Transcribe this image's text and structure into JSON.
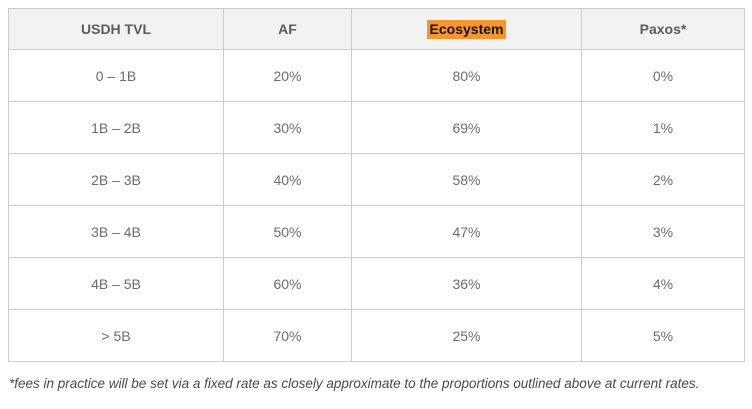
{
  "chart_data": {
    "type": "table",
    "title": "",
    "columns": [
      "USDH TVL",
      "AF",
      "Ecosystem",
      "Paxos*"
    ],
    "highlighted_column": "Ecosystem",
    "rows": [
      [
        "0 – 1B",
        "20%",
        "80%",
        "0%"
      ],
      [
        "1B – 2B",
        "30%",
        "69%",
        "1%"
      ],
      [
        "2B – 3B",
        "40%",
        "58%",
        "2%"
      ],
      [
        "3B – 4B",
        "50%",
        "47%",
        "3%"
      ],
      [
        "4B – 5B",
        "60%",
        "36%",
        "4%"
      ],
      [
        "> 5B",
        "70%",
        "25%",
        "5%"
      ]
    ],
    "footnote": "*fees in practice will be set via a fixed rate as closely approximate to the proportions outlined above at current rates.",
    "colors": {
      "header_background": "#f2f2f2",
      "highlight_background": "#f7962d",
      "highlight_text": "#141414",
      "border": "#cccccc",
      "header_text": "#5b5b5b",
      "cell_text": "#6d6d6d",
      "footnote_text": "#4a4a4a",
      "page_background": "#ffffff"
    }
  }
}
